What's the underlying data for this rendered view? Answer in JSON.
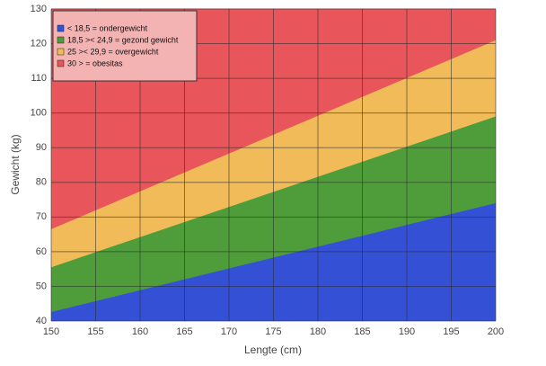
{
  "chart_data": {
    "type": "area",
    "x_label": "Lengte (cm)",
    "y_label": "Gewicht (kg)",
    "x": [
      150,
      200
    ],
    "series": [
      {
        "name": "< 18,5 = ondergewicht",
        "color": "#3451d6",
        "values": [
          42.6,
          74
        ]
      },
      {
        "name": "18,5 >< 24,9 = gezond gewicht",
        "color": "#4f9d3a",
        "values": [
          55.5,
          99
        ]
      },
      {
        "name": "25 >< 29,9 = overgewicht",
        "color": "#f0bb58",
        "values": [
          66.5,
          121
        ]
      },
      {
        "name": "30 > = obesitas",
        "color": "#e8555b",
        "values": [
          130,
          130
        ]
      }
    ],
    "xlim": [
      150,
      200
    ],
    "xticks": [
      150,
      155,
      160,
      165,
      170,
      175,
      180,
      185,
      190,
      195,
      200
    ],
    "ylim": [
      40,
      130
    ],
    "yticks": [
      40,
      50,
      60,
      70,
      80,
      90,
      100,
      110,
      120,
      130
    ],
    "grid": true,
    "legend": "top-left"
  }
}
